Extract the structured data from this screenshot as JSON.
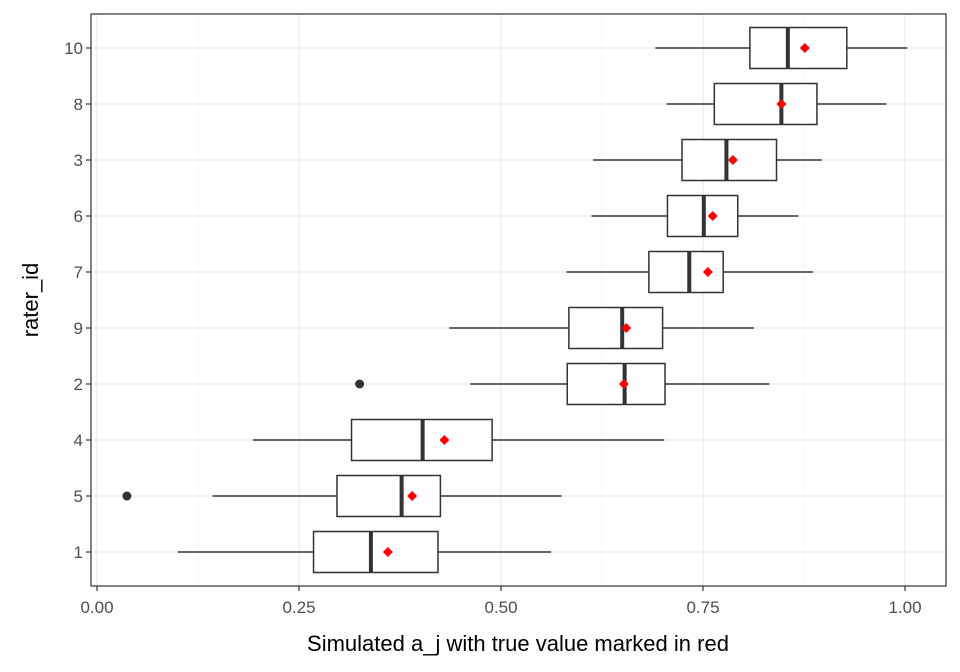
{
  "chart_data": {
    "type": "boxplot",
    "title": "",
    "xlabel": "Simulated a_j with true value marked in red",
    "ylabel": "rater_id",
    "xlim": [
      -0.02,
      1.05
    ],
    "xticks": [
      0.0,
      0.25,
      0.5,
      0.75,
      1.0
    ],
    "xtick_labels": [
      "0.00",
      "0.25",
      "0.50",
      "0.75",
      "1.00"
    ],
    "grid": true,
    "orientation": "horizontal",
    "colors": {
      "box_fill": "#ffffff",
      "box_line": "#333333",
      "true_value": "#ff0000",
      "grid_major": "#ebebeb",
      "grid_minor": "#f5f5f5"
    },
    "categories": [
      "1",
      "5",
      "4",
      "2",
      "9",
      "7",
      "6",
      "3",
      "8",
      "10"
    ],
    "boxes": [
      {
        "id": "1",
        "whisker_low": 0.1,
        "q1": 0.268,
        "median": 0.339,
        "q3": 0.422,
        "whisker_high": 0.562,
        "outliers": [],
        "true_value": 0.36
      },
      {
        "id": "5",
        "whisker_low": 0.143,
        "q1": 0.297,
        "median": 0.377,
        "q3": 0.425,
        "whisker_high": 0.575,
        "outliers": [
          0.037
        ],
        "true_value": 0.39
      },
      {
        "id": "4",
        "whisker_low": 0.193,
        "q1": 0.315,
        "median": 0.403,
        "q3": 0.489,
        "whisker_high": 0.702,
        "outliers": [],
        "true_value": 0.43
      },
      {
        "id": "2",
        "whisker_low": 0.462,
        "q1": 0.582,
        "median": 0.653,
        "q3": 0.703,
        "whisker_high": 0.832,
        "outliers": [
          0.325
        ],
        "true_value": 0.652
      },
      {
        "id": "9",
        "whisker_low": 0.436,
        "q1": 0.584,
        "median": 0.65,
        "q3": 0.7,
        "whisker_high": 0.813,
        "outliers": [],
        "true_value": 0.655
      },
      {
        "id": "7",
        "whisker_low": 0.581,
        "q1": 0.683,
        "median": 0.733,
        "q3": 0.775,
        "whisker_high": 0.886,
        "outliers": [],
        "true_value": 0.756
      },
      {
        "id": "6",
        "whisker_low": 0.612,
        "q1": 0.706,
        "median": 0.751,
        "q3": 0.793,
        "whisker_high": 0.868,
        "outliers": [],
        "true_value": 0.762
      },
      {
        "id": "3",
        "whisker_low": 0.614,
        "q1": 0.724,
        "median": 0.779,
        "q3": 0.841,
        "whisker_high": 0.897,
        "outliers": [],
        "true_value": 0.787
      },
      {
        "id": "8",
        "whisker_low": 0.705,
        "q1": 0.764,
        "median": 0.847,
        "q3": 0.891,
        "whisker_high": 0.977,
        "outliers": [],
        "true_value": 0.847
      },
      {
        "id": "10",
        "whisker_low": 0.691,
        "q1": 0.808,
        "median": 0.855,
        "q3": 0.928,
        "whisker_high": 1.003,
        "outliers": [],
        "true_value": 0.876
      }
    ]
  }
}
